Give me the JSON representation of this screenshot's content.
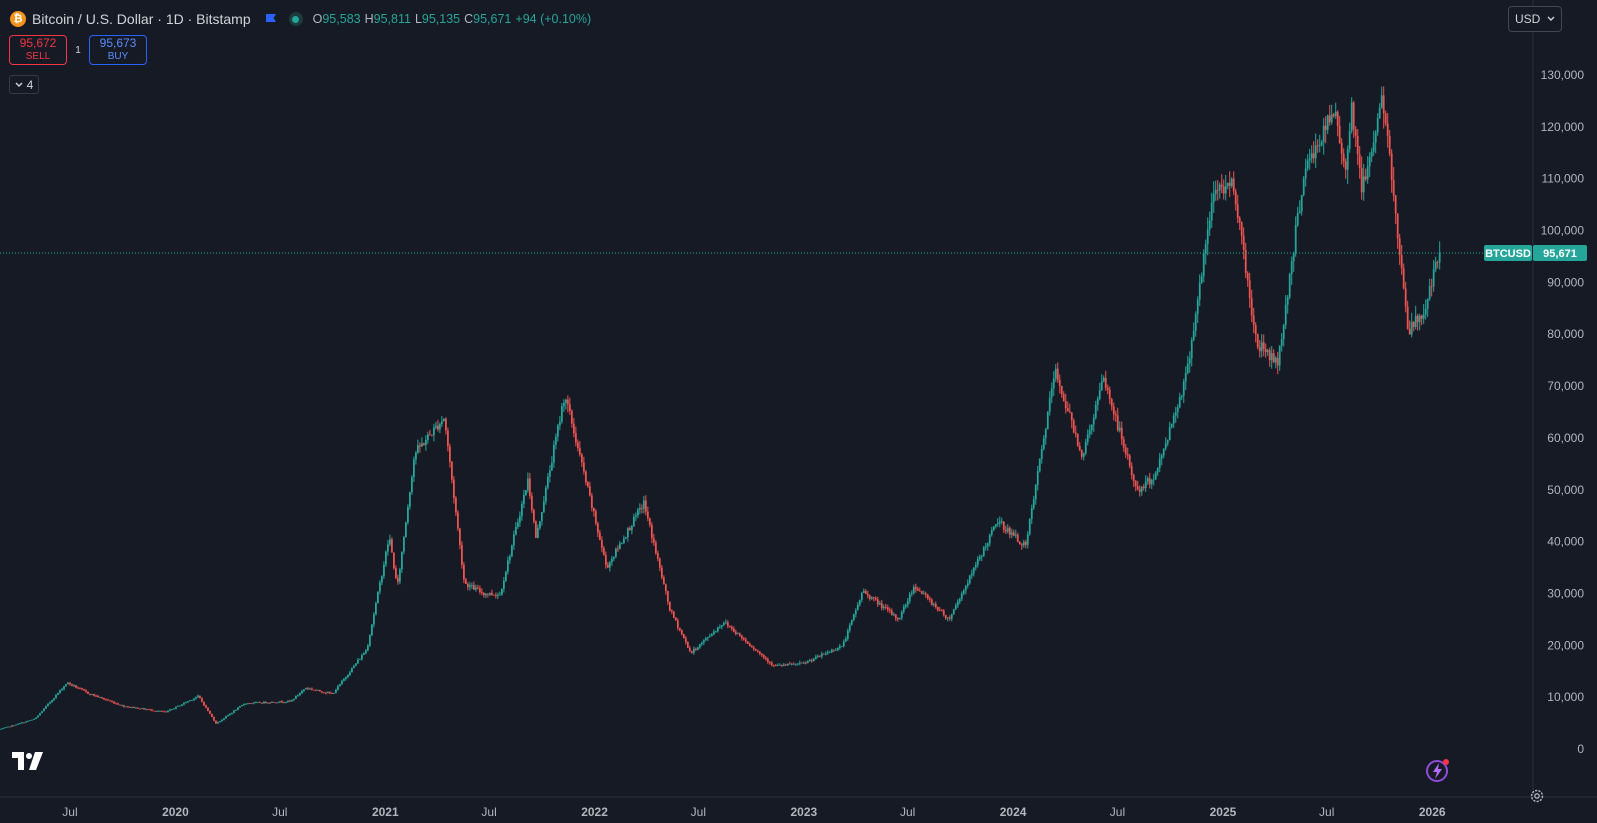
{
  "legend": {
    "symbol_title": "Bitcoin / U.S. Dollar · 1D · Bitstamp",
    "open_key": "O",
    "open": "95,583",
    "high_key": "H",
    "high": "95,811",
    "low_key": "L",
    "low": "95,135",
    "close_key": "C",
    "close": "95,671",
    "change": "+94 (+0.10%)"
  },
  "trade": {
    "sell_price": "95,672",
    "sell_label": "SELL",
    "spread": "1",
    "buy_price": "95,673",
    "buy_label": "BUY"
  },
  "indicators_toggle": {
    "count": "4"
  },
  "currency": {
    "value": "USD"
  },
  "price_label": {
    "symbol": "BTCUSD",
    "value": "95,671"
  },
  "icons": [
    "bitcoin-icon",
    "flag-icon",
    "market-status-icon",
    "chevron-down-icon",
    "tradingview-logo",
    "magic-fx-icon",
    "settings-icon"
  ],
  "colors": {
    "background": "#161a25",
    "up": "#26a69a",
    "down": "#ef5350",
    "sell": "#f23645",
    "buy": "#2962ff",
    "axis_text": "#b2b5be"
  },
  "chart_data": {
    "type": "candlestick",
    "title": "Bitcoin / U.S. Dollar · 1D · Bitstamp",
    "interval": "1D",
    "x_tick_labels": [
      "Jul",
      "2020",
      "Jul",
      "2021",
      "Jul",
      "2022",
      "Jul",
      "2023",
      "Jul",
      "2024",
      "Jul",
      "2025",
      "Jul",
      "2026"
    ],
    "y_tick_labels": [
      "0",
      "10,000",
      "20,000",
      "30,000",
      "40,000",
      "50,000",
      "60,000",
      "70,000",
      "80,000",
      "90,000",
      "100,000",
      "110,000",
      "120,000",
      "130,000"
    ],
    "y_ticks": [
      0,
      10000,
      20000,
      30000,
      40000,
      50000,
      60000,
      70000,
      80000,
      90000,
      100000,
      110000,
      120000,
      130000
    ],
    "ylim": [
      -4000,
      135000
    ],
    "last_price": 95671,
    "series": [
      {
        "name": "BTCUSD",
        "points": [
          [
            "2019-03-01",
            3800
          ],
          [
            "2019-05-01",
            5800
          ],
          [
            "2019-06-26",
            12800
          ],
          [
            "2019-08-01",
            10800
          ],
          [
            "2019-10-01",
            8300
          ],
          [
            "2019-12-15",
            7100
          ],
          [
            "2020-02-10",
            10200
          ],
          [
            "2020-03-12",
            4900
          ],
          [
            "2020-05-01",
            8800
          ],
          [
            "2020-07-20",
            9200
          ],
          [
            "2020-08-15",
            11800
          ],
          [
            "2020-10-01",
            10600
          ],
          [
            "2020-11-30",
            19300
          ],
          [
            "2021-01-08",
            41000
          ],
          [
            "2021-01-22",
            31000
          ],
          [
            "2021-02-21",
            57000
          ],
          [
            "2021-04-14",
            64000
          ],
          [
            "2021-05-19",
            32000
          ],
          [
            "2021-06-22",
            30000
          ],
          [
            "2021-07-20",
            29800
          ],
          [
            "2021-09-07",
            52000
          ],
          [
            "2021-09-21",
            40500
          ],
          [
            "2021-11-10",
            68500
          ],
          [
            "2022-01-22",
            35000
          ],
          [
            "2022-03-28",
            47500
          ],
          [
            "2022-05-12",
            27000
          ],
          [
            "2022-06-18",
            18500
          ],
          [
            "2022-08-15",
            24500
          ],
          [
            "2022-11-10",
            16000
          ],
          [
            "2023-01-01",
            16500
          ],
          [
            "2023-03-10",
            20000
          ],
          [
            "2023-04-14",
            30500
          ],
          [
            "2023-06-15",
            25000
          ],
          [
            "2023-07-13",
            31500
          ],
          [
            "2023-09-11",
            25000
          ],
          [
            "2023-10-24",
            34500
          ],
          [
            "2023-12-05",
            44000
          ],
          [
            "2024-01-23",
            39000
          ],
          [
            "2024-03-14",
            73000
          ],
          [
            "2024-05-01",
            56500
          ],
          [
            "2024-06-07",
            71500
          ],
          [
            "2024-08-05",
            49500
          ],
          [
            "2024-09-06",
            53000
          ],
          [
            "2024-10-29",
            72000
          ],
          [
            "2024-12-17",
            108000
          ],
          [
            "2025-01-20",
            109000
          ],
          [
            "2025-02-28",
            78500
          ],
          [
            "2025-04-07",
            74500
          ],
          [
            "2025-05-22",
            111000
          ],
          [
            "2025-07-14",
            123000
          ],
          [
            "2025-08-02",
            112000
          ],
          [
            "2025-08-14",
            124000
          ],
          [
            "2025-09-01",
            107500
          ],
          [
            "2025-10-06",
            126000
          ],
          [
            "2025-11-21",
            80500
          ],
          [
            "2025-12-20",
            85000
          ],
          [
            "2026-01-14",
            95671
          ]
        ]
      }
    ]
  }
}
